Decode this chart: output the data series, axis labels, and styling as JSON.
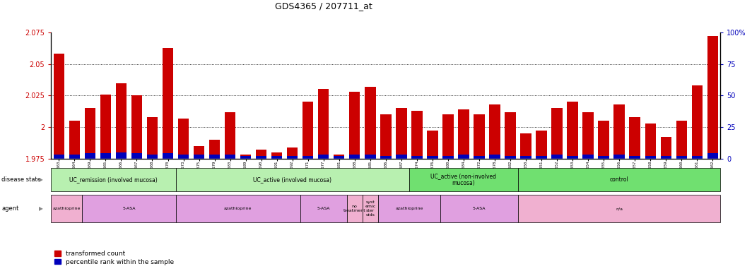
{
  "title": "GDS4365 / 207711_at",
  "ylim_left": [
    1.975,
    2.075
  ],
  "yticks_left": [
    1.975,
    2.0,
    2.025,
    2.05,
    2.075
  ],
  "ytick_labels_left": [
    "1.975",
    "2",
    "2.025",
    "2.05",
    "2.075"
  ],
  "ylim_right": [
    0,
    100
  ],
  "yticks_right": [
    0,
    25,
    50,
    75,
    100
  ],
  "ytick_labels_right": [
    "0",
    "25",
    "50",
    "75",
    "100%"
  ],
  "samples": [
    "GSM948563",
    "GSM948564",
    "GSM948569",
    "GSM948565",
    "GSM948566",
    "GSM948567",
    "GSM948568",
    "GSM948570",
    "GSM948573",
    "GSM948575",
    "GSM948579",
    "GSM948583",
    "GSM948589",
    "GSM948590",
    "GSM948591",
    "GSM948592",
    "GSM948571",
    "GSM948577",
    "GSM948581",
    "GSM948588",
    "GSM948585",
    "GSM948586",
    "GSM948587",
    "GSM948574",
    "GSM948576",
    "GSM948580",
    "GSM948584",
    "GSM948572",
    "GSM948578",
    "GSM948582",
    "GSM948550",
    "GSM948551",
    "GSM948552",
    "GSM948553",
    "GSM948554",
    "GSM948555",
    "GSM948556",
    "GSM948557",
    "GSM948558",
    "GSM948559",
    "GSM948560",
    "GSM948561",
    "GSM948562"
  ],
  "red_values_pct": [
    83,
    30,
    40,
    51,
    60,
    50,
    33,
    88,
    32,
    10,
    15,
    37,
    3,
    7,
    5,
    9,
    45,
    55,
    3,
    53,
    57,
    35,
    40,
    38,
    22,
    35,
    39,
    35,
    43,
    37,
    20,
    22,
    40,
    45,
    37,
    30,
    43,
    33,
    28,
    17,
    30,
    58,
    97
  ],
  "blue_values_pct": [
    3,
    3,
    4,
    4,
    5,
    4,
    3,
    4,
    3,
    3,
    3,
    3,
    2,
    2,
    2,
    2,
    2,
    3,
    2,
    3,
    3,
    2,
    3,
    2,
    2,
    2,
    3,
    2,
    3,
    2,
    2,
    2,
    3,
    2,
    3,
    2,
    3,
    2,
    2,
    2,
    2,
    2,
    4
  ],
  "disease_state_groups": [
    {
      "label": "UC_remission (involved mucosa)",
      "start": 0,
      "end": 8,
      "color": "#b8f0b0"
    },
    {
      "label": "UC_active (involved mucosa)",
      "start": 8,
      "end": 23,
      "color": "#b8f0b0"
    },
    {
      "label": "UC_active (non-involved\nmucosa)",
      "start": 23,
      "end": 30,
      "color": "#70e070"
    },
    {
      "label": "control",
      "start": 30,
      "end": 43,
      "color": "#70e070"
    }
  ],
  "agent_groups": [
    {
      "label": "azathioprine",
      "start": 0,
      "end": 2,
      "color": "#f0b0d0"
    },
    {
      "label": "5-ASA",
      "start": 2,
      "end": 8,
      "color": "#e0a0e0"
    },
    {
      "label": "azathioprine",
      "start": 8,
      "end": 16,
      "color": "#e0a0e0"
    },
    {
      "label": "5-ASA",
      "start": 16,
      "end": 19,
      "color": "#e0a0e0"
    },
    {
      "label": "no\ntreatment",
      "start": 19,
      "end": 20,
      "color": "#f0b0d0"
    },
    {
      "label": "syst\nemic\nster\noids",
      "start": 20,
      "end": 21,
      "color": "#f0b0d0"
    },
    {
      "label": "azathioprine",
      "start": 21,
      "end": 25,
      "color": "#e0a0e0"
    },
    {
      "label": "5-ASA",
      "start": 25,
      "end": 30,
      "color": "#e0a0e0"
    },
    {
      "label": "n/a",
      "start": 30,
      "end": 43,
      "color": "#f0b0d0"
    }
  ],
  "bar_color": "#CC0000",
  "blue_color": "#0000BB",
  "left_tick_color": "#CC0000",
  "right_tick_color": "#0000BB",
  "grid_dotted_pct": [
    25,
    50,
    75
  ],
  "bg_color": "#FFFFFF",
  "plot_bg": "#FFFFFF"
}
